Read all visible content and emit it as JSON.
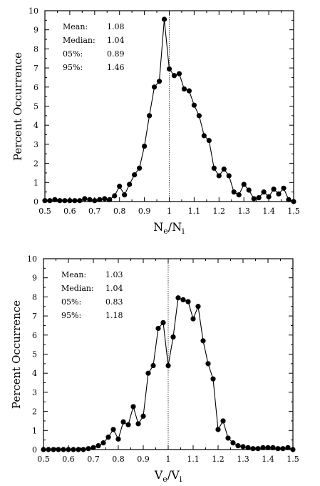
{
  "chart_data": [
    {
      "type": "line",
      "xlabel_main": "N",
      "xlabel_sub1": "e",
      "xlabel_mid": "/N",
      "xlabel_sub2": "i",
      "ylabel": "Percent Occurrence",
      "xlim": [
        0.5,
        1.5
      ],
      "ylim": [
        0,
        10
      ],
      "xticks": [
        "0.5",
        "0.6",
        "0.7",
        "0.8",
        "0.9",
        "1",
        "1.1",
        "1.2",
        "1.3",
        "1.4",
        "1.5"
      ],
      "yticks": [
        "0",
        "1",
        "2",
        "3",
        "4",
        "5",
        "6",
        "7",
        "8",
        "9",
        "10"
      ],
      "reference_line_x": 1.0,
      "stats": [
        {
          "label": "Mean:",
          "value": "1.08"
        },
        {
          "label": "Median:",
          "value": "1.04"
        },
        {
          "label": "05%:",
          "value": "0.89"
        },
        {
          "label": "95%:",
          "value": "1.46"
        }
      ],
      "x": [
        0.5,
        0.52,
        0.54,
        0.56,
        0.58,
        0.6,
        0.62,
        0.64,
        0.66,
        0.68,
        0.7,
        0.72,
        0.74,
        0.76,
        0.78,
        0.8,
        0.82,
        0.84,
        0.86,
        0.88,
        0.9,
        0.92,
        0.94,
        0.96,
        0.98,
        1.0,
        1.02,
        1.04,
        1.06,
        1.08,
        1.1,
        1.12,
        1.14,
        1.16,
        1.18,
        1.2,
        1.22,
        1.24,
        1.26,
        1.28,
        1.3,
        1.32,
        1.34,
        1.36,
        1.38,
        1.4,
        1.42,
        1.44,
        1.46,
        1.48,
        1.5
      ],
      "y": [
        0.05,
        0.05,
        0.1,
        0.05,
        0.05,
        0.05,
        0.05,
        0.05,
        0.15,
        0.1,
        0.05,
        0.1,
        0.15,
        0.1,
        0.3,
        0.8,
        0.35,
        0.9,
        1.4,
        1.75,
        2.9,
        4.5,
        6.0,
        6.3,
        9.55,
        6.95,
        6.6,
        6.7,
        5.9,
        5.8,
        5.05,
        4.5,
        3.45,
        3.2,
        1.75,
        1.35,
        1.7,
        1.35,
        0.5,
        0.35,
        0.9,
        0.6,
        0.15,
        0.2,
        0.5,
        0.25,
        0.65,
        0.4,
        0.7,
        0.1,
        0.0
      ]
    },
    {
      "type": "line",
      "xlabel_main": "V",
      "xlabel_sub1": "e",
      "xlabel_mid": "/V",
      "xlabel_sub2": "i",
      "ylabel": "Percent Occurrence",
      "xlim": [
        0.5,
        1.5
      ],
      "ylim": [
        0,
        10
      ],
      "xticks": [
        "0.5",
        "0.6",
        "0.7",
        "0.8",
        "0.9",
        "1",
        "1.1",
        "1.2",
        "1.3",
        "1.4",
        "1.5"
      ],
      "yticks": [
        "0",
        "1",
        "2",
        "3",
        "4",
        "5",
        "6",
        "7",
        "8",
        "9",
        "10"
      ],
      "reference_line_x": 1.0,
      "stats": [
        {
          "label": "Mean:",
          "value": "1.03"
        },
        {
          "label": "Median:",
          "value": "1.04"
        },
        {
          "label": "05%:",
          "value": "0.83"
        },
        {
          "label": "95%:",
          "value": "1.18"
        }
      ],
      "x": [
        0.5,
        0.52,
        0.54,
        0.56,
        0.58,
        0.6,
        0.62,
        0.64,
        0.66,
        0.68,
        0.7,
        0.72,
        0.74,
        0.76,
        0.78,
        0.8,
        0.82,
        0.84,
        0.86,
        0.88,
        0.9,
        0.92,
        0.94,
        0.96,
        0.98,
        1.0,
        1.02,
        1.04,
        1.06,
        1.08,
        1.1,
        1.12,
        1.14,
        1.16,
        1.18,
        1.2,
        1.22,
        1.24,
        1.26,
        1.28,
        1.3,
        1.32,
        1.34,
        1.36,
        1.38,
        1.4,
        1.42,
        1.44,
        1.46,
        1.48,
        1.5
      ],
      "y": [
        0.0,
        0.0,
        0.0,
        0.0,
        0.0,
        0.0,
        0.0,
        0.0,
        0.0,
        0.05,
        0.1,
        0.2,
        0.35,
        0.65,
        1.05,
        0.55,
        1.45,
        1.3,
        2.25,
        1.35,
        1.75,
        4.0,
        4.4,
        6.35,
        6.65,
        4.4,
        5.9,
        7.95,
        7.85,
        7.75,
        6.85,
        7.5,
        5.7,
        4.5,
        3.7,
        1.05,
        1.5,
        0.6,
        0.35,
        0.2,
        0.15,
        0.1,
        0.05,
        0.05,
        0.1,
        0.1,
        0.1,
        0.05,
        0.05,
        0.1,
        0.0
      ]
    }
  ]
}
